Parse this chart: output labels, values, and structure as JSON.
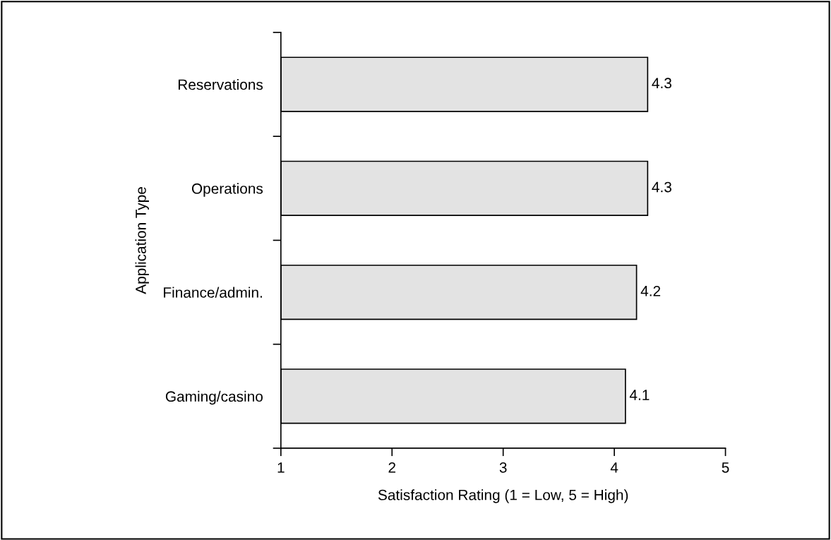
{
  "chart_data": {
    "type": "bar",
    "orientation": "horizontal",
    "xlabel": "Satisfaction Rating (1 = Low, 5 = High)",
    "ylabel": "Application Type",
    "categories": [
      "Reservations",
      "Operations",
      "Finance/admin.",
      "Gaming/casino"
    ],
    "values": [
      4.3,
      4.3,
      4.2,
      4.1
    ],
    "color": "#e3e3e3",
    "data_labels": true,
    "xlim": [
      1,
      5
    ],
    "xticks": [
      1,
      2,
      3,
      4,
      5
    ],
    "grid": false,
    "legend": false
  }
}
